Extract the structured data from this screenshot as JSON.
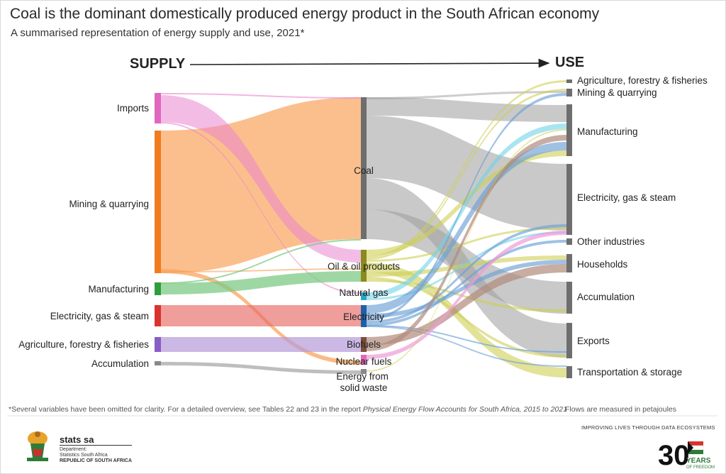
{
  "header": {
    "title": "Coal is the dominant domestically produced energy product in the South African economy",
    "subtitle": "A summarised representation of energy supply and use, 2021*"
  },
  "axis_labels": {
    "supply": "SUPPLY",
    "use": "USE"
  },
  "supply_nodes": [
    {
      "label": "Imports",
      "color": "#e066c0"
    },
    {
      "label": "Mining & quarrying",
      "color": "#f07c1e"
    },
    {
      "label": "Manufacturing",
      "color": "#2e9e3a"
    },
    {
      "label": "Electricity, gas & steam",
      "color": "#d9332e"
    },
    {
      "label": "Agriculture, forestry & fisheries",
      "color": "#8a5cc4"
    },
    {
      "label": "Accumulation",
      "color": "#888888"
    }
  ],
  "product_nodes": [
    {
      "label": "Coal",
      "color": "#6e6e6e"
    },
    {
      "label": "Oil & oil products",
      "color": "#8a8a1e"
    },
    {
      "label": "Natural gas",
      "color": "#2aa6c4"
    },
    {
      "label": "Electricity",
      "color": "#1f5fa8"
    },
    {
      "label": "Biofuels",
      "color": "#7a4e3a"
    },
    {
      "label": "Nuclear fuels",
      "color": "#e066c0"
    },
    {
      "label": "Energy from solid waste",
      "color": "#888888"
    }
  ],
  "use_nodes": [
    {
      "label": "Agriculture, forestry & fisheries"
    },
    {
      "label": "Mining & quarrying"
    },
    {
      "label": "Manufacturing"
    },
    {
      "label": "Electricity, gas & steam"
    },
    {
      "label": "Other industries"
    },
    {
      "label": "Households"
    },
    {
      "label": "Accumulation"
    },
    {
      "label": "Exports"
    },
    {
      "label": "Transportation & storage"
    }
  ],
  "footer": {
    "footnote_prefix": "*Several variables have been omitted for clarity. For a detailed overview, see Tables 22 and 23 in the report ",
    "footnote_report": "Physical Energy Flow Accounts for South Africa, 2015 to 2021",
    "flows_note": "Flows are measured in petajoules",
    "logo_name": "stats sa",
    "logo_dept": "Department:",
    "logo_org": "Statistics South Africa",
    "logo_country": "REPUBLIC OF SOUTH AFRICA",
    "tagline": "IMPROVING LIVES THROUGH DATA ECOSYSTEMS",
    "badge_number": "30",
    "badge_years": "YEARS",
    "badge_freedom": "OF FREEDOM"
  }
}
